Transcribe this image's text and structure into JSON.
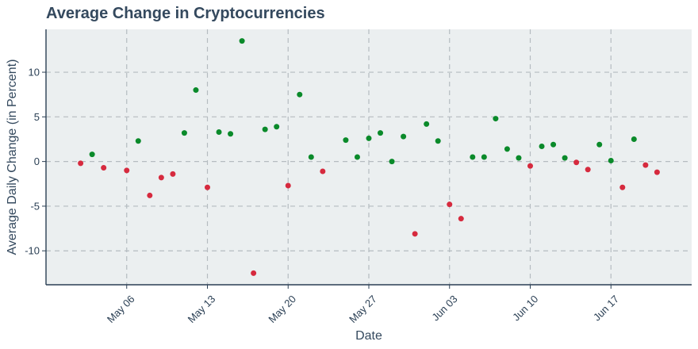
{
  "chart_data": {
    "type": "scatter",
    "title": "Average Change in Cryptocurrencies",
    "xlabel": "Date",
    "ylabel": "Average Daily Change (in Percent)",
    "x_ticks": [
      "May 06",
      "May 13",
      "May 20",
      "May 27",
      "Jun 03",
      "Jun 10",
      "Jun 17"
    ],
    "x_tick_dates": [
      "2024-05-06",
      "2024-05-13",
      "2024-05-20",
      "2024-05-27",
      "2024-06-03",
      "2024-06-10",
      "2024-06-17"
    ],
    "y_ticks": [
      -10,
      -5,
      0,
      5,
      10
    ],
    "xlim": [
      "2024-04-29",
      "2024-06-24"
    ],
    "ylim": [
      -13.8,
      14.8
    ],
    "grid": true,
    "colors": {
      "positive": "#0a8a2a",
      "negative": "#d62a3e",
      "plot_bg": "#ebeff0"
    },
    "series": [
      {
        "x": [
          "2024-05-02",
          "2024-05-03",
          "2024-05-04",
          "2024-05-06",
          "2024-05-07",
          "2024-05-08",
          "2024-05-09",
          "2024-05-10",
          "2024-05-11",
          "2024-05-12",
          "2024-05-13",
          "2024-05-14",
          "2024-05-15",
          "2024-05-16",
          "2024-05-17",
          "2024-05-18",
          "2024-05-19",
          "2024-05-20",
          "2024-05-21",
          "2024-05-22",
          "2024-05-23",
          "2024-05-25",
          "2024-05-26",
          "2024-05-27",
          "2024-05-28",
          "2024-05-29",
          "2024-05-30",
          "2024-05-31",
          "2024-06-01",
          "2024-06-02",
          "2024-06-03",
          "2024-06-04",
          "2024-06-05",
          "2024-06-06",
          "2024-06-07",
          "2024-06-08",
          "2024-06-09",
          "2024-06-10",
          "2024-06-11",
          "2024-06-12",
          "2024-06-13",
          "2024-06-14",
          "2024-06-15",
          "2024-06-16",
          "2024-06-17",
          "2024-06-18",
          "2024-06-19",
          "2024-06-20",
          "2024-06-21"
        ],
        "values": [
          -0.2,
          0.8,
          -0.7,
          -1.0,
          2.3,
          -3.8,
          -1.8,
          -1.4,
          3.2,
          8.0,
          -2.9,
          3.3,
          3.1,
          13.5,
          -12.5,
          3.6,
          3.9,
          -2.7,
          7.5,
          0.5,
          -1.1,
          2.4,
          0.5,
          2.6,
          3.2,
          0.0,
          2.8,
          -8.1,
          4.2,
          2.3,
          -4.8,
          -6.4,
          0.5,
          0.5,
          4.8,
          1.4,
          0.4,
          -0.5,
          1.7,
          1.9,
          0.4,
          -0.1,
          -0.9,
          1.9,
          0.1,
          -2.9,
          2.5,
          -0.4,
          -1.2
        ]
      }
    ]
  }
}
